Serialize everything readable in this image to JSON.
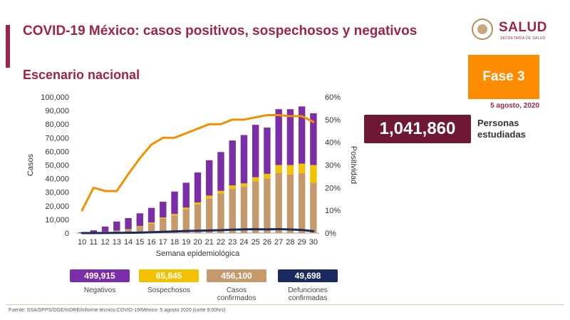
{
  "header": {
    "title": "COVID-19 México: casos positivos, sospechosos y negativos",
    "subtitle": "Escenario nacional",
    "logo_text": "SALUD",
    "logo_subtext": "SECRETARÍA DE SALUD"
  },
  "phase": {
    "label": "Fase 3",
    "date": "5 agosto, 2020"
  },
  "persons": {
    "value": "1,041,860",
    "label": "Personas estudiadas"
  },
  "legend": [
    {
      "value": "499,915",
      "label": "Negativos",
      "color": "#7b2fa6"
    },
    {
      "value": "85,845",
      "label": "Sospechosos",
      "color": "#f2c200"
    },
    {
      "value": "456,100",
      "label": "Casos confirmados",
      "color": "#c49a6c"
    },
    {
      "value": "49,698",
      "label": "Defunciones confirmadas",
      "color": "#1a2a5c"
    }
  ],
  "footer": {
    "source": "Fuente: SSA/SPPS/DGE/InDRE/Informe técnico.COVID-19/México- 5 agosto 2020 (corte 9:00hrs)"
  },
  "chart_data": {
    "type": "bar",
    "stacked": true,
    "xlabel": "Semana epidemiológica",
    "ylabel": "Casos",
    "y2label": "Positividad",
    "ylim": [
      0,
      100000
    ],
    "y2lim": [
      0,
      60
    ],
    "yticks": [
      "0",
      "10,000",
      "20,000",
      "30,000",
      "40,000",
      "50,000",
      "60,000",
      "70,000",
      "80,000",
      "90,000",
      "100,000"
    ],
    "y2ticks": [
      "0%",
      "10%",
      "20%",
      "30%",
      "40%",
      "50%",
      "60%"
    ],
    "categories": [
      "10",
      "11",
      "12",
      "13",
      "14",
      "15",
      "16",
      "17",
      "18",
      "19",
      "20",
      "21",
      "22",
      "23",
      "24",
      "25",
      "26",
      "27",
      "28",
      "29",
      "30"
    ],
    "series": [
      {
        "name": "Casos confirmados",
        "kind": "bar",
        "color": "#c49a6c",
        "values": [
          100,
          400,
          800,
          1500,
          2500,
          4500,
          7000,
          10500,
          13000,
          17500,
          21000,
          25500,
          29000,
          32500,
          34000,
          38000,
          40000,
          44000,
          43000,
          44000,
          37000
        ]
      },
      {
        "name": "Sospechosos",
        "kind": "bar",
        "color": "#f2c200",
        "values": [
          0,
          100,
          200,
          300,
          400,
          600,
          800,
          900,
          1000,
          1200,
          1500,
          2000,
          2000,
          2500,
          2500,
          3000,
          3500,
          6000,
          7000,
          7000,
          13000
        ]
      },
      {
        "name": "Negativos",
        "kind": "bar",
        "color": "#7b2fa6",
        "values": [
          500,
          1500,
          3800,
          6700,
          8100,
          9400,
          10700,
          11600,
          16500,
          18300,
          22000,
          26000,
          28500,
          33000,
          35500,
          38500,
          34000,
          41000,
          41000,
          42000,
          38000
        ]
      },
      {
        "name": "Defunciones confirmadas",
        "kind": "line",
        "axis": "left",
        "color": "#1a2a5c",
        "values": [
          0,
          10,
          40,
          100,
          200,
          350,
          600,
          900,
          1200,
          1500,
          1700,
          1900,
          2100,
          2500,
          2700,
          2800,
          2700,
          2900,
          2600,
          2300,
          1400
        ]
      },
      {
        "name": "Positividad",
        "kind": "line",
        "axis": "right",
        "color": "#f29100",
        "values": [
          10,
          20,
          18.5,
          18.5,
          26,
          33,
          39,
          42,
          42,
          44,
          46,
          48,
          48,
          50,
          50,
          51,
          52,
          52,
          51.5,
          51.5,
          49
        ]
      }
    ]
  }
}
